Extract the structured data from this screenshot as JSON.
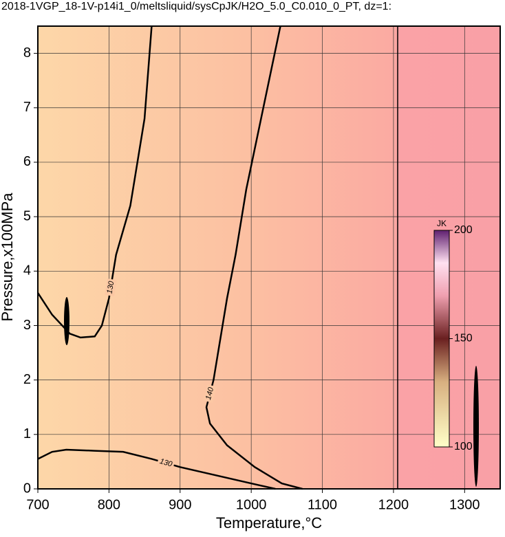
{
  "chart_data": {
    "type": "contour",
    "title": "2018-1VGP_18-1V-p14i1_0/meltsliquid/sysCpJK/H2O_5.0_C0.010_0_PT, dz=1:",
    "x_label": "Temperature,°C",
    "y_label": "Pressure,x100MPa",
    "xlim": [
      700,
      1350
    ],
    "ylim": [
      0,
      8.5
    ],
    "xticks": [
      700,
      800,
      900,
      1000,
      1100,
      1200,
      1300
    ],
    "yticks": [
      0,
      1,
      2,
      3,
      4,
      5,
      6,
      7,
      8
    ],
    "grid": true,
    "contours": [
      {
        "label": "130",
        "x": [
          700,
          720,
          745,
          760,
          780,
          790,
          800,
          805,
          810,
          830,
          850,
          860
        ],
        "y": [
          3.6,
          3.2,
          2.85,
          2.78,
          2.8,
          3.0,
          3.5,
          3.9,
          4.3,
          5.2,
          6.8,
          8.5
        ]
      },
      {
        "label": "130",
        "x": [
          700,
          720,
          740,
          780,
          820,
          860,
          900,
          950,
          1000,
          1034
        ],
        "y": [
          0.55,
          0.68,
          0.72,
          0.7,
          0.68,
          0.55,
          0.4,
          0.25,
          0.1,
          0
        ]
      },
      {
        "label": "140",
        "x": [
          1072,
          1043,
          1005,
          966,
          942,
          937,
          947,
          966,
          978,
          993,
          1041
        ],
        "y": [
          0,
          0.1,
          0.4,
          0.8,
          1.2,
          1.5,
          2,
          3.5,
          4.3,
          5.5,
          8.5
        ]
      }
    ],
    "colorbar": {
      "label": "JK",
      "clim": [
        100,
        200
      ],
      "ticks": [
        100,
        150,
        200
      ]
    }
  }
}
